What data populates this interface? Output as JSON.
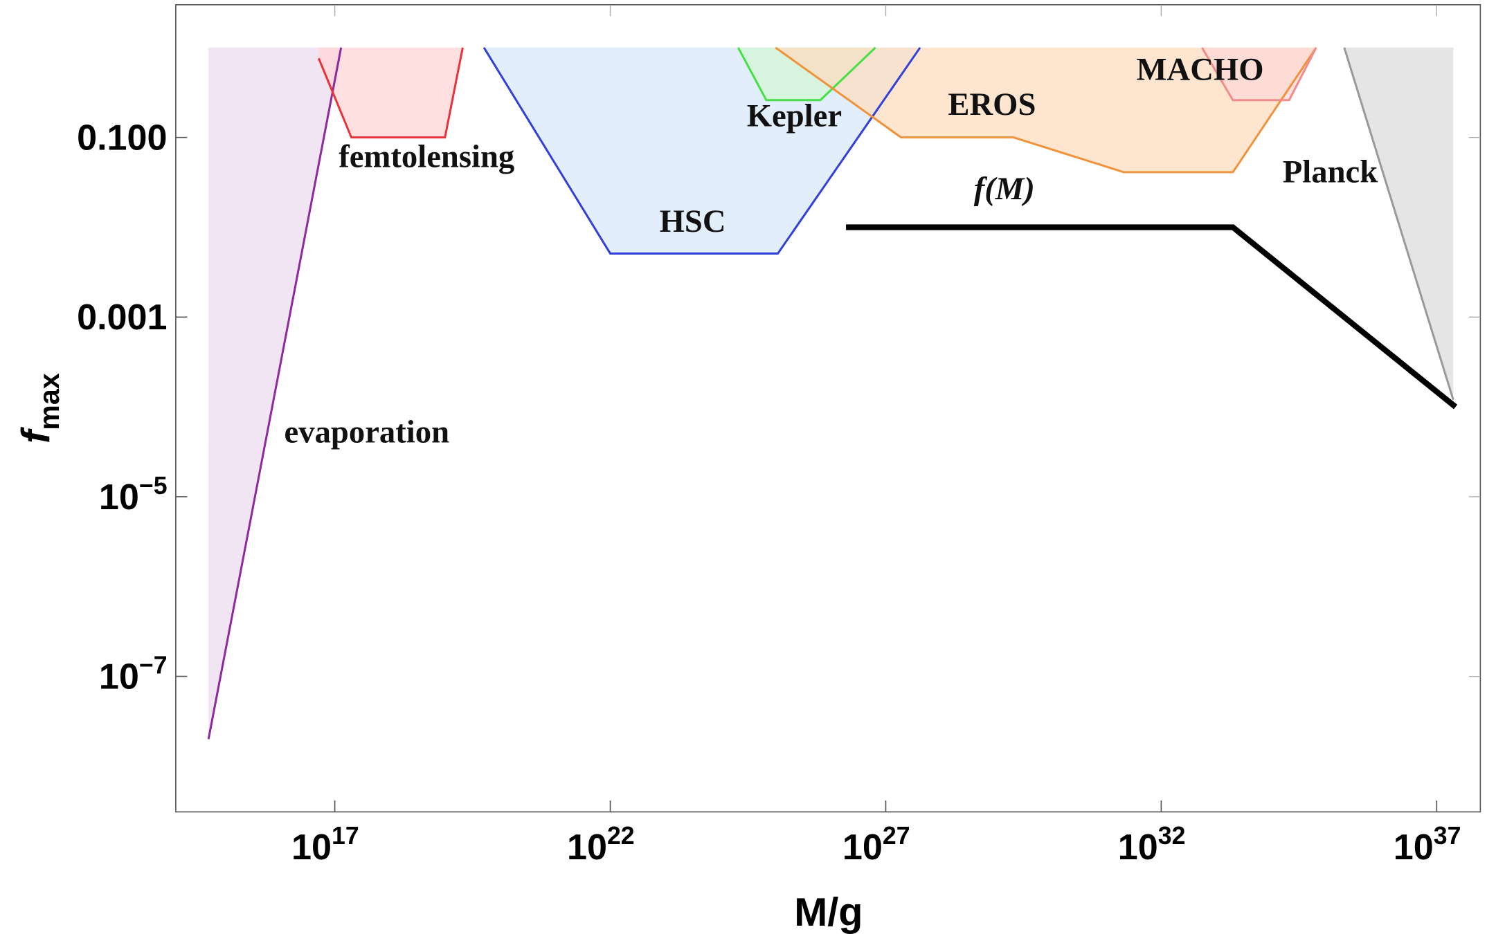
{
  "chart_data": {
    "type": "line",
    "xlabel": "M/g",
    "ylabel": "f",
    "ylabel_sub": "max",
    "xlog": true,
    "ylog": true,
    "grid": false,
    "xlim": [
      130000000000000.0,
      6.2e+37
    ],
    "ylim": [
      3.1e-09,
      3.0
    ],
    "xticks": [
      {
        "value": 1e+17,
        "label": "10",
        "exponent": "17"
      },
      {
        "value": 1e+22,
        "label": "10",
        "exponent": "22"
      },
      {
        "value": 1e+27,
        "label": "10",
        "exponent": "27"
      },
      {
        "value": 1e+32,
        "label": "10",
        "exponent": "32"
      },
      {
        "value": 1e+37,
        "label": "10",
        "exponent": "37"
      }
    ],
    "yticks": [
      {
        "value": 0.1,
        "label": "0.100"
      },
      0.001,
      {
        "value": 1e-05,
        "label": "10",
        "exponent": "−5"
      },
      {
        "value": 1e-07,
        "label": "10",
        "exponent": "−7"
      }
    ],
    "series": [
      {
        "name": "evaporation",
        "color": "#8e2a9e",
        "fill": "#ecdcef",
        "x": [
          510000000000000.0,
          1.3e+17
        ],
        "values": [
          2e-08,
          1
        ]
      },
      {
        "name": "femtolensing",
        "color": "#e8333a",
        "fill": "#ffd4d4",
        "x": [
          5.1e+16,
          2e+17,
          1e+19,
          2.1e+19
        ],
        "values": [
          0.76,
          0.1,
          0.1,
          1
        ]
      },
      {
        "name": "HSC",
        "color": "#3340d8",
        "fill": "#d8eafa",
        "x": [
          5.1e+19,
          1e+22,
          1.1e+25,
          4.2e+27
        ],
        "values": [
          1,
          0.0051,
          0.0051,
          1
        ]
      },
      {
        "name": "Kepler",
        "color": "#44e044",
        "fill": "#d4f4d4",
        "x": [
          2.1e+24,
          6.8e+24,
          6.5e+25,
          6.5e+26
        ],
        "values": [
          1,
          0.26,
          0.26,
          1
        ]
      },
      {
        "name": "EROS",
        "color": "#f0923a",
        "fill": "#fddcc0",
        "x": [
          1e+25,
          1.9e+27,
          2.1e+29,
          2.1e+31,
          2e+33,
          6.5e+34
        ],
        "values": [
          1,
          0.1,
          0.1,
          0.041,
          0.041,
          1
        ]
      },
      {
        "name": "MACHO",
        "color": "#f08c8c",
        "fill": "#fdd8d8",
        "x": [
          5.5e+32,
          2e+33,
          2.1e+34,
          6.5e+34
        ],
        "values": [
          1,
          0.26,
          0.26,
          1
        ]
      },
      {
        "name": "Planck",
        "color": "#999999",
        "fill": "#dcdcdc",
        "x": [
          2.1e+35,
          2e+37
        ],
        "values": [
          1,
          0.00012
        ]
      },
      {
        "name": "f(M)",
        "color": "#000000",
        "x": [
          1.9e+26,
          2e+33,
          2.2e+37
        ],
        "values": [
          0.01,
          0.01,
          0.0001
        ]
      }
    ]
  }
}
